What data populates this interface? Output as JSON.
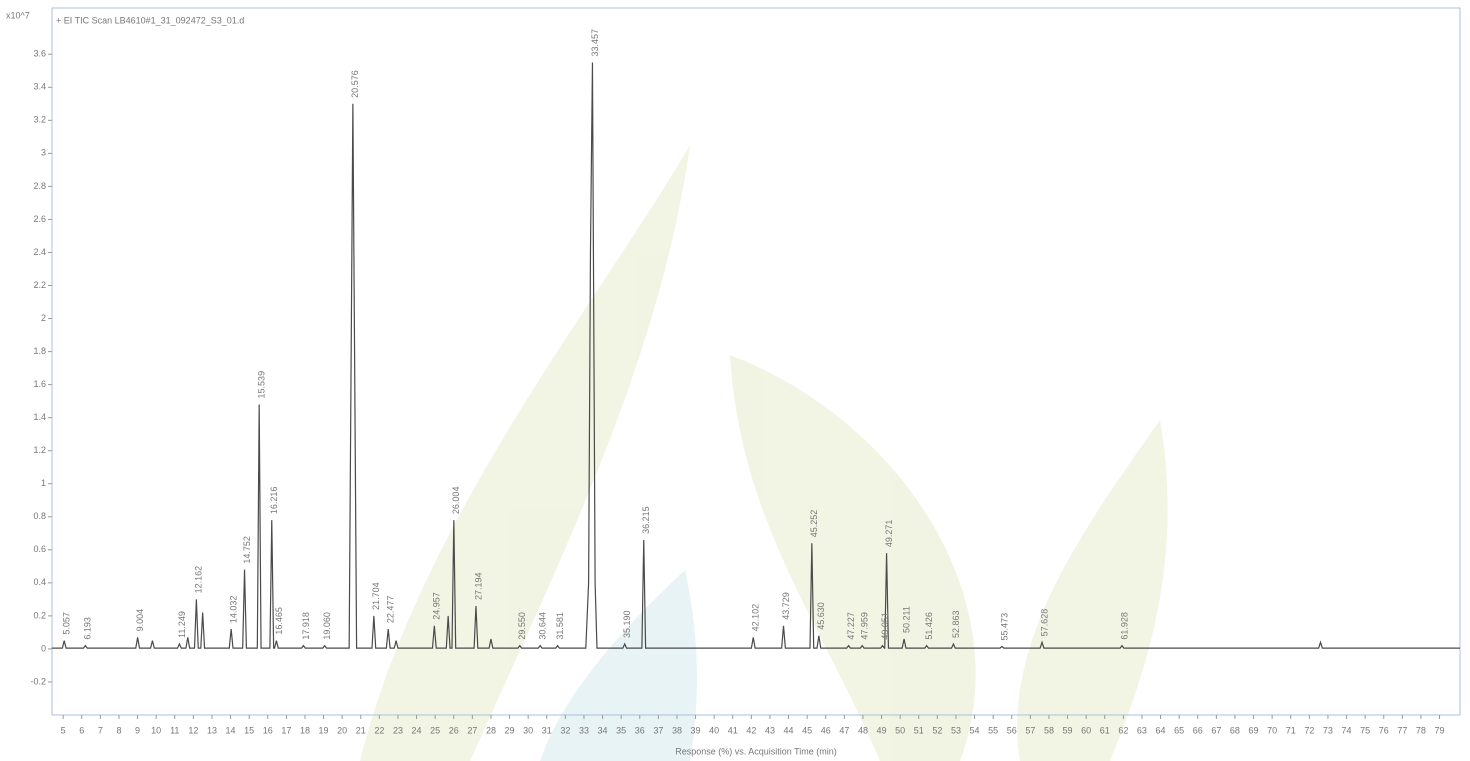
{
  "chart_data": {
    "type": "line",
    "title": "+ EI TIC Scan LB4610#1_31_092472_S3_01.d",
    "y_multiplier": "x10^7",
    "xlabel": "Response (%) vs. Acquisition Time (min)",
    "color": "#4a4a4a",
    "xlim": [
      4.4,
      80.1
    ],
    "ylim": [
      -0.4,
      3.88
    ],
    "xticks": [
      5,
      6,
      7,
      8,
      9,
      10,
      11,
      12,
      13,
      14,
      15,
      16,
      17,
      18,
      19,
      20,
      21,
      22,
      23,
      24,
      25,
      26,
      27,
      28,
      29,
      30,
      31,
      32,
      33,
      34,
      35,
      36,
      37,
      38,
      39,
      40,
      41,
      42,
      43,
      44,
      45,
      46,
      47,
      48,
      49,
      50,
      51,
      52,
      53,
      54,
      55,
      56,
      57,
      58,
      59,
      60,
      61,
      62,
      63,
      64,
      65,
      66,
      67,
      68,
      69,
      70,
      71,
      72,
      73,
      74,
      75,
      76,
      77,
      78,
      79
    ],
    "yticks": [
      -0.2,
      0,
      0.2,
      0.4,
      0.6,
      0.8,
      1,
      1.2,
      1.4,
      1.6,
      1.8,
      2,
      2.2,
      2.4,
      2.6,
      2.8,
      3,
      3.2,
      3.4,
      3.6
    ],
    "x": [
      4.4,
      4.957,
      5.057,
      5.157,
      6.093,
      6.193,
      6.293,
      8.904,
      9.004,
      9.104,
      9.7,
      9.8,
      9.9,
      11.149,
      11.249,
      11.349,
      11.6,
      11.7,
      11.8,
      12.062,
      12.162,
      12.262,
      12.4,
      12.5,
      12.6,
      13.932,
      14.032,
      14.132,
      14.652,
      14.752,
      14.852,
      15.439,
      15.539,
      15.639,
      16.116,
      16.216,
      16.316,
      16.365,
      16.465,
      16.565,
      17.818,
      17.918,
      18.018,
      18.96,
      19.06,
      19.16,
      20.376,
      20.576,
      20.776,
      21.604,
      21.704,
      21.804,
      22.377,
      22.477,
      22.577,
      22.8,
      22.9,
      23,
      24.857,
      24.957,
      25.057,
      25.6,
      25.7,
      25.8,
      25.904,
      26.004,
      26.104,
      27.094,
      27.194,
      27.294,
      27.9,
      28,
      28.1,
      29.45,
      29.55,
      29.65,
      30.544,
      30.644,
      30.744,
      31.481,
      31.581,
      31.681,
      33.1,
      33.25,
      33.35,
      33.457,
      33.6,
      33.7,
      35.09,
      35.19,
      35.29,
      36.115,
      36.215,
      36.315,
      42.002,
      42.102,
      42.202,
      43.629,
      43.729,
      43.829,
      45.152,
      45.252,
      45.352,
      45.53,
      45.63,
      45.73,
      47.127,
      47.227,
      47.327,
      47.859,
      47.959,
      48.059,
      48.951,
      49.051,
      49.151,
      49.171,
      49.271,
      49.371,
      50.111,
      50.211,
      50.311,
      51.326,
      51.426,
      51.526,
      52.763,
      52.863,
      52.963,
      55.373,
      55.473,
      55.573,
      57.528,
      57.628,
      57.728,
      61.828,
      61.928,
      62.028,
      72.5,
      72.6,
      72.7,
      80.1
    ],
    "values": [
      0.005,
      0.005,
      0.05,
      0.005,
      0.005,
      0.02,
      0.005,
      0.005,
      0.07,
      0.005,
      0.005,
      0.05,
      0.005,
      0.005,
      0.03,
      0.005,
      0.005,
      0.07,
      0.005,
      0.005,
      0.3,
      0.005,
      0.005,
      0.22,
      0.005,
      0.005,
      0.12,
      0.005,
      0.005,
      0.48,
      0.005,
      0.005,
      1.48,
      0.005,
      0.005,
      0.78,
      0.005,
      0.005,
      0.05,
      0.005,
      0.005,
      0.02,
      0.005,
      0.005,
      0.02,
      0.005,
      0.005,
      3.3,
      0.005,
      0.005,
      0.2,
      0.005,
      0.005,
      0.12,
      0.005,
      0.005,
      0.05,
      0.005,
      0.005,
      0.14,
      0.005,
      0.005,
      0.2,
      0.005,
      0.005,
      0.78,
      0.005,
      0.005,
      0.26,
      0.005,
      0.005,
      0.06,
      0.005,
      0.005,
      0.02,
      0.005,
      0.005,
      0.02,
      0.005,
      0.005,
      0.02,
      0.005,
      0.005,
      0.4,
      2.4,
      3.55,
      0.4,
      0.005,
      0.005,
      0.03,
      0.005,
      0.005,
      0.66,
      0.005,
      0.005,
      0.07,
      0.005,
      0.005,
      0.14,
      0.005,
      0.005,
      0.64,
      0.005,
      0.005,
      0.08,
      0.005,
      0.005,
      0.02,
      0.005,
      0.005,
      0.02,
      0.005,
      0.005,
      0.02,
      0.005,
      0.005,
      0.58,
      0.005,
      0.005,
      0.06,
      0.005,
      0.005,
      0.02,
      0.005,
      0.005,
      0.03,
      0.005,
      0.005,
      0.015,
      0.005,
      0.005,
      0.04,
      0.005,
      0.005,
      0.02,
      0.005,
      0.005,
      0.04,
      0.005,
      0.005
    ],
    "peak_labels": [
      "5.057",
      "6.193",
      "9.004",
      "11.249",
      "12.162",
      "14.032",
      "14.752",
      "15.539",
      "16.216",
      "16.465",
      "17.918",
      "19.060",
      "20.576",
      "21.704",
      "22.477",
      "24.957",
      "26.004",
      "27.194",
      "29.550",
      "30.644",
      "31.581",
      "33.457",
      "35.190",
      "36.215",
      "42.102",
      "43.729",
      "45.252",
      "45.630",
      "47.227",
      "47.959",
      "49.051",
      "49.271",
      "50.211",
      "51.426",
      "52.863",
      "55.473",
      "57.628",
      "61.928"
    ]
  }
}
